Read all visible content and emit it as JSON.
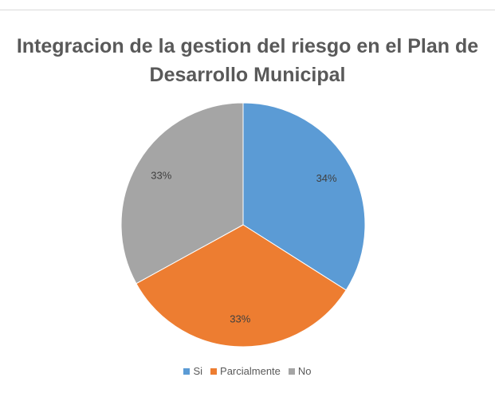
{
  "chart_data": {
    "type": "pie",
    "title": "Integracion de la gestion del riesgo en el Plan de Desarrollo Municipal",
    "categories": [
      "Si",
      "Parcialmente",
      "No"
    ],
    "values": [
      34,
      33,
      33
    ],
    "value_labels": [
      "34%",
      "33%",
      "33%"
    ],
    "colors": [
      "#5b9bd5",
      "#ed7d31",
      "#a5a5a5"
    ],
    "legend": "bottom"
  }
}
